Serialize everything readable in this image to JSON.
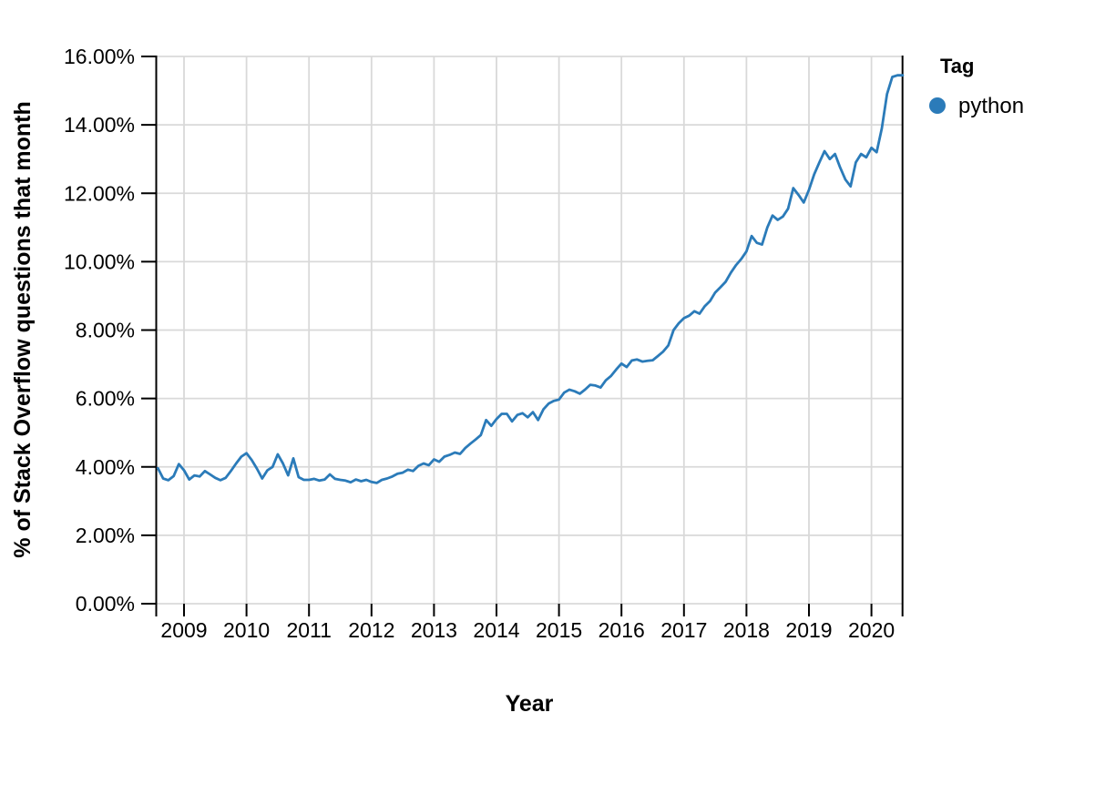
{
  "chart_data": {
    "type": "line",
    "title": "",
    "xlabel": "Year",
    "ylabel": "% of Stack Overflow questions that month",
    "legend": {
      "title": "Tag",
      "position": "right"
    },
    "grid": true,
    "x_ticks": [
      2009,
      2010,
      2011,
      2012,
      2013,
      2014,
      2015,
      2016,
      2017,
      2018,
      2019,
      2020
    ],
    "y_ticks": {
      "values": [
        0,
        2,
        4,
        6,
        8,
        10,
        12,
        14,
        16
      ],
      "labels": [
        "0.00%",
        "2.00%",
        "4.00%",
        "6.00%",
        "8.00%",
        "10.00%",
        "12.00%",
        "14.00%",
        "16.00%"
      ]
    },
    "xlim_years": [
      2008.55,
      2020.5
    ],
    "ylim": [
      0,
      16
    ],
    "series": [
      {
        "name": "python",
        "color": "#2b7bb9",
        "x_unit": "month",
        "start_month": "2008-08",
        "end_month": "2020-07",
        "values": [
          3.96,
          3.66,
          3.61,
          3.73,
          4.08,
          3.9,
          3.63,
          3.75,
          3.72,
          3.88,
          3.78,
          3.68,
          3.61,
          3.68,
          3.88,
          4.1,
          4.3,
          4.4,
          4.2,
          3.95,
          3.66,
          3.9,
          4.0,
          4.37,
          4.1,
          3.75,
          4.25,
          3.7,
          3.62,
          3.62,
          3.65,
          3.6,
          3.63,
          3.78,
          3.65,
          3.62,
          3.6,
          3.55,
          3.63,
          3.58,
          3.62,
          3.56,
          3.53,
          3.62,
          3.66,
          3.72,
          3.8,
          3.83,
          3.92,
          3.88,
          4.03,
          4.1,
          4.05,
          4.22,
          4.15,
          4.3,
          4.35,
          4.42,
          4.38,
          4.55,
          4.68,
          4.8,
          4.93,
          5.37,
          5.2,
          5.4,
          5.55,
          5.55,
          5.33,
          5.52,
          5.57,
          5.45,
          5.6,
          5.37,
          5.68,
          5.85,
          5.93,
          5.97,
          6.17,
          6.26,
          6.21,
          6.14,
          6.26,
          6.4,
          6.38,
          6.32,
          6.53,
          6.66,
          6.85,
          7.02,
          6.92,
          7.11,
          7.14,
          7.08,
          7.1,
          7.12,
          7.24,
          7.37,
          7.55,
          8.0,
          8.2,
          8.35,
          8.42,
          8.55,
          8.48,
          8.7,
          8.85,
          9.1,
          9.25,
          9.41,
          9.68,
          9.9,
          10.08,
          10.3,
          10.75,
          10.55,
          10.5,
          11.0,
          11.35,
          11.22,
          11.32,
          11.55,
          12.15,
          11.95,
          11.73,
          12.1,
          12.55,
          12.9,
          13.23,
          13.0,
          13.15,
          12.75,
          12.4,
          12.2,
          12.9,
          13.15,
          13.05,
          13.33,
          13.2,
          13.9,
          14.9,
          15.4,
          15.45,
          15.45
        ]
      }
    ]
  }
}
